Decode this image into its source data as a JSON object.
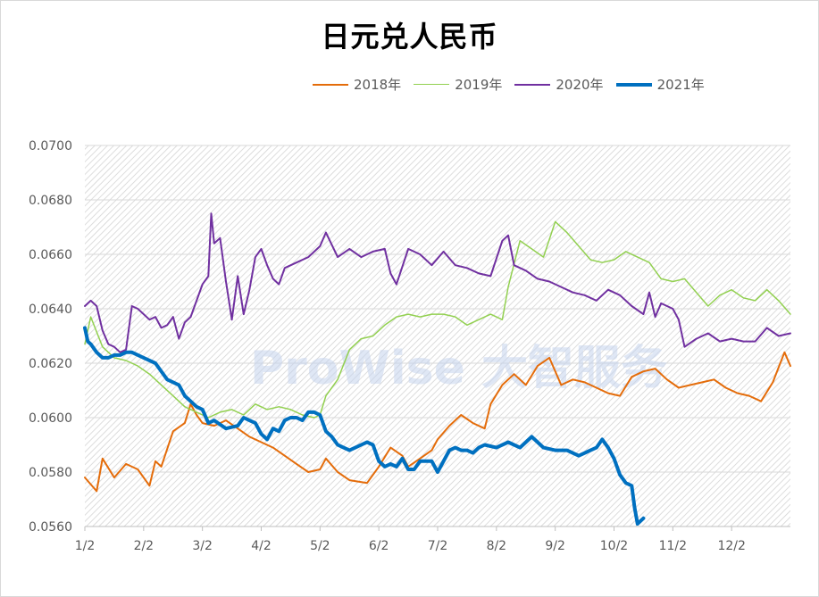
{
  "chart_data": {
    "type": "line",
    "title": "日元兑人民币",
    "xlabel": "",
    "ylabel": "",
    "x_tick_labels": [
      "1/2",
      "2/2",
      "3/2",
      "4/2",
      "5/2",
      "6/2",
      "7/2",
      "8/2",
      "9/2",
      "10/2",
      "11/2",
      "12/2"
    ],
    "y_tick_labels": [
      "0.0560",
      "0.0580",
      "0.0600",
      "0.0620",
      "0.0640",
      "0.0660",
      "0.0680",
      "0.0700"
    ],
    "ylim": [
      0.056,
      0.07
    ],
    "x_unit": "month (1 = Jan 2)",
    "xlim": [
      1,
      13
    ],
    "grid": "horizontal",
    "legend_position": "top",
    "watermark": "ProWise 大智服务",
    "series": [
      {
        "name": "2018年",
        "color": "#e46c0a",
        "width": 2,
        "x": [
          1.0,
          1.2,
          1.3,
          1.5,
          1.7,
          1.9,
          2.1,
          2.2,
          2.3,
          2.5,
          2.7,
          2.8,
          2.9,
          3.0,
          3.2,
          3.4,
          3.6,
          3.8,
          4.0,
          4.2,
          4.4,
          4.6,
          4.8,
          5.0,
          5.1,
          5.3,
          5.5,
          5.8,
          6.0,
          6.2,
          6.4,
          6.5,
          6.7,
          6.9,
          7.0,
          7.2,
          7.4,
          7.6,
          7.8,
          7.9,
          8.1,
          8.3,
          8.5,
          8.7,
          8.9,
          9.1,
          9.3,
          9.5,
          9.7,
          9.9,
          10.1,
          10.3,
          10.5,
          10.7,
          10.9,
          11.1,
          11.3,
          11.5,
          11.7,
          11.9,
          12.1,
          12.3,
          12.5,
          12.7,
          12.9,
          13.0
        ],
        "y": [
          0.0578,
          0.0573,
          0.0585,
          0.0578,
          0.0583,
          0.0581,
          0.0575,
          0.0584,
          0.0582,
          0.0595,
          0.0598,
          0.0605,
          0.0601,
          0.0598,
          0.0597,
          0.0599,
          0.0596,
          0.0593,
          0.0591,
          0.0589,
          0.0586,
          0.0583,
          0.058,
          0.0581,
          0.0585,
          0.058,
          0.0577,
          0.0576,
          0.0582,
          0.0589,
          0.0586,
          0.0582,
          0.0585,
          0.0588,
          0.0592,
          0.0597,
          0.0601,
          0.0598,
          0.0596,
          0.0605,
          0.0612,
          0.0616,
          0.0612,
          0.0619,
          0.0622,
          0.0612,
          0.0614,
          0.0613,
          0.0611,
          0.0609,
          0.0608,
          0.0615,
          0.0617,
          0.0618,
          0.0614,
          0.0611,
          0.0612,
          0.0613,
          0.0614,
          0.0611,
          0.0609,
          0.0608,
          0.0606,
          0.0613,
          0.0624,
          0.0619
        ]
      },
      {
        "name": "2019年",
        "color": "#92d050",
        "width": 1.5,
        "x": [
          1.0,
          1.1,
          1.3,
          1.5,
          1.7,
          1.9,
          2.1,
          2.3,
          2.5,
          2.7,
          2.9,
          3.1,
          3.3,
          3.5,
          3.7,
          3.9,
          4.1,
          4.3,
          4.5,
          4.7,
          4.9,
          5.0,
          5.1,
          5.3,
          5.5,
          5.7,
          5.9,
          6.1,
          6.3,
          6.5,
          6.7,
          6.9,
          7.1,
          7.3,
          7.5,
          7.7,
          7.9,
          8.1,
          8.2,
          8.4,
          8.6,
          8.8,
          9.0,
          9.2,
          9.4,
          9.6,
          9.8,
          10.0,
          10.2,
          10.4,
          10.6,
          10.8,
          11.0,
          11.2,
          11.4,
          11.6,
          11.8,
          12.0,
          12.2,
          12.4,
          12.6,
          12.8,
          13.0
        ],
        "y": [
          0.0627,
          0.0637,
          0.0626,
          0.0622,
          0.0621,
          0.0619,
          0.0616,
          0.0612,
          0.0608,
          0.0604,
          0.0602,
          0.06,
          0.0602,
          0.0603,
          0.0601,
          0.0605,
          0.0603,
          0.0604,
          0.0603,
          0.0601,
          0.06,
          0.0601,
          0.0608,
          0.0614,
          0.0625,
          0.0629,
          0.063,
          0.0634,
          0.0637,
          0.0638,
          0.0637,
          0.0638,
          0.0638,
          0.0637,
          0.0634,
          0.0636,
          0.0638,
          0.0636,
          0.0648,
          0.0665,
          0.0662,
          0.0659,
          0.0672,
          0.0668,
          0.0663,
          0.0658,
          0.0657,
          0.0658,
          0.0661,
          0.0659,
          0.0657,
          0.0651,
          0.065,
          0.0651,
          0.0646,
          0.0641,
          0.0645,
          0.0647,
          0.0644,
          0.0643,
          0.0647,
          0.0643,
          0.0638
        ]
      },
      {
        "name": "2020年",
        "color": "#7030a0",
        "width": 2,
        "x": [
          1.0,
          1.1,
          1.2,
          1.3,
          1.4,
          1.5,
          1.6,
          1.7,
          1.8,
          1.9,
          2.1,
          2.2,
          2.3,
          2.4,
          2.5,
          2.6,
          2.7,
          2.8,
          2.9,
          3.0,
          3.1,
          3.15,
          3.2,
          3.3,
          3.4,
          3.5,
          3.6,
          3.7,
          3.8,
          3.9,
          4.0,
          4.1,
          4.2,
          4.3,
          4.4,
          4.6,
          4.8,
          5.0,
          5.1,
          5.3,
          5.5,
          5.7,
          5.9,
          6.1,
          6.2,
          6.3,
          6.5,
          6.7,
          6.9,
          7.1,
          7.3,
          7.5,
          7.7,
          7.9,
          8.1,
          8.2,
          8.3,
          8.5,
          8.7,
          8.9,
          9.1,
          9.3,
          9.5,
          9.7,
          9.9,
          10.1,
          10.3,
          10.5,
          10.6,
          10.7,
          10.8,
          11.0,
          11.1,
          11.2,
          11.4,
          11.6,
          11.8,
          12.0,
          12.2,
          12.4,
          12.6,
          12.8,
          13.0
        ],
        "y": [
          0.0641,
          0.0643,
          0.0641,
          0.0632,
          0.0627,
          0.0626,
          0.0624,
          0.0625,
          0.0641,
          0.064,
          0.0636,
          0.0637,
          0.0633,
          0.0634,
          0.0637,
          0.0629,
          0.0635,
          0.0637,
          0.0643,
          0.0649,
          0.0652,
          0.0675,
          0.0664,
          0.0666,
          0.065,
          0.0636,
          0.0652,
          0.0638,
          0.0647,
          0.0659,
          0.0662,
          0.0656,
          0.0651,
          0.0649,
          0.0655,
          0.0657,
          0.0659,
          0.0663,
          0.0668,
          0.0659,
          0.0662,
          0.0659,
          0.0661,
          0.0662,
          0.0653,
          0.0649,
          0.0662,
          0.066,
          0.0656,
          0.0661,
          0.0656,
          0.0655,
          0.0653,
          0.0652,
          0.0665,
          0.0667,
          0.0656,
          0.0654,
          0.0651,
          0.065,
          0.0648,
          0.0646,
          0.0645,
          0.0643,
          0.0647,
          0.0645,
          0.0641,
          0.0638,
          0.0646,
          0.0637,
          0.0642,
          0.064,
          0.0636,
          0.0626,
          0.0629,
          0.0631,
          0.0628,
          0.0629,
          0.0628,
          0.0628,
          0.0633,
          0.063,
          0.0631
        ]
      },
      {
        "name": "2021年",
        "color": "#0070c0",
        "width": 4,
        "x": [
          1.0,
          1.05,
          1.1,
          1.2,
          1.3,
          1.4,
          1.5,
          1.6,
          1.7,
          1.8,
          2.0,
          2.2,
          2.4,
          2.6,
          2.7,
          2.8,
          2.9,
          3.0,
          3.1,
          3.2,
          3.4,
          3.6,
          3.7,
          3.8,
          3.9,
          4.0,
          4.1,
          4.2,
          4.3,
          4.4,
          4.5,
          4.6,
          4.7,
          4.8,
          4.9,
          5.0,
          5.1,
          5.2,
          5.3,
          5.4,
          5.5,
          5.6,
          5.7,
          5.8,
          5.9,
          6.0,
          6.1,
          6.2,
          6.3,
          6.4,
          6.5,
          6.6,
          6.7,
          6.8,
          6.9,
          7.0,
          7.1,
          7.2,
          7.3,
          7.4,
          7.5,
          7.6,
          7.7,
          7.8,
          8.0,
          8.2,
          8.4,
          8.6,
          8.8,
          9.0,
          9.2,
          9.4,
          9.6,
          9.7,
          9.8,
          9.9,
          10.0,
          10.1,
          10.2,
          10.3,
          10.35,
          10.4,
          10.5
        ],
        "y": [
          0.0633,
          0.0628,
          0.0627,
          0.0624,
          0.0622,
          0.0622,
          0.0623,
          0.0623,
          0.0624,
          0.0624,
          0.0622,
          0.062,
          0.0614,
          0.0612,
          0.0608,
          0.0606,
          0.0604,
          0.0603,
          0.0598,
          0.0599,
          0.0596,
          0.0597,
          0.06,
          0.0599,
          0.0598,
          0.0594,
          0.0592,
          0.0596,
          0.0595,
          0.0599,
          0.06,
          0.06,
          0.0599,
          0.0602,
          0.0602,
          0.0601,
          0.0595,
          0.0593,
          0.059,
          0.0589,
          0.0588,
          0.0589,
          0.059,
          0.0591,
          0.059,
          0.0584,
          0.0582,
          0.0583,
          0.0582,
          0.0585,
          0.0581,
          0.0581,
          0.0584,
          0.0584,
          0.0584,
          0.058,
          0.0584,
          0.0588,
          0.0589,
          0.0588,
          0.0588,
          0.0587,
          0.0589,
          0.059,
          0.0589,
          0.0591,
          0.0589,
          0.0593,
          0.0589,
          0.0588,
          0.0588,
          0.0586,
          0.0588,
          0.0589,
          0.0592,
          0.0589,
          0.0585,
          0.0579,
          0.0576,
          0.0575,
          0.0567,
          0.0561,
          0.0563
        ]
      }
    ]
  }
}
